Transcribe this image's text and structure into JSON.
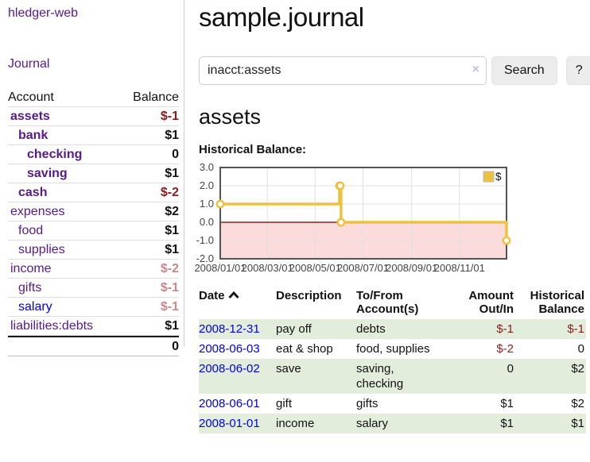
{
  "brand": "hledger-web",
  "nav": {
    "journal": "Journal"
  },
  "sidebar": {
    "header": {
      "account": "Account",
      "balance": "Balance"
    },
    "accounts": [
      {
        "name": "assets",
        "level": 1,
        "bold": true,
        "balance": "$-1"
      },
      {
        "name": "bank",
        "level": 2,
        "bold": true,
        "balance": "$1"
      },
      {
        "name": "checking",
        "level": 3,
        "bold": true,
        "balance": "0"
      },
      {
        "name": "saving",
        "level": 3,
        "bold": true,
        "balance": "$1"
      },
      {
        "name": "cash",
        "level": 2,
        "bold": true,
        "balance": "$-2"
      },
      {
        "name": "expenses",
        "level": 1,
        "bold": false,
        "balance": "$2"
      },
      {
        "name": "food",
        "level": 2,
        "bold": false,
        "balance": "$1"
      },
      {
        "name": "supplies",
        "level": 2,
        "bold": false,
        "balance": "$1"
      },
      {
        "name": "income",
        "level": 1,
        "bold": false,
        "balance": "$-2",
        "faded": true
      },
      {
        "name": "gifts",
        "level": 2,
        "bold": false,
        "balance": "$-1",
        "faded": true
      },
      {
        "name": "salary",
        "level": 2,
        "bold": false,
        "balance": "$-1",
        "faded": true,
        "blue": true
      },
      {
        "name": "liabilities:debts",
        "level": 1,
        "bold": false,
        "balance": "$1"
      }
    ],
    "total": "0"
  },
  "main": {
    "title": "sample.journal",
    "search": {
      "value": "inacct:assets",
      "clear_icon": "×",
      "search_button": "Search",
      "help_button": "?"
    },
    "account_heading": "assets",
    "chart_title": "Historical Balance:"
  },
  "chart_data": {
    "type": "line",
    "step": true,
    "title": "Historical Balance",
    "x": [
      "2008-01-01",
      "2008-06-01",
      "2008-06-02",
      "2008-06-03",
      "2008-12-31"
    ],
    "series": [
      {
        "name": "$",
        "color": "#EDC240",
        "values": [
          1,
          2,
          2,
          0,
          -1
        ]
      }
    ],
    "x_tick_labels": [
      "2008/01/01",
      "2008/03/01",
      "2008/05/01",
      "2008/07/01",
      "2008/09/01",
      "2008/11/01"
    ],
    "y_ticks": [
      3.0,
      2.0,
      1.0,
      0.0,
      -1.0,
      -2.0
    ],
    "ylim": [
      -2,
      3
    ],
    "xlim": [
      "2008-01-01",
      "2008-12-31"
    ],
    "legend": {
      "position": "top-right",
      "label": "$"
    },
    "grid": true,
    "negative_region_color": "#fbdbdb",
    "zero_line_color": "#8b2222",
    "plot_border_color": "#545454"
  },
  "register_table": {
    "headers": {
      "date": "Date",
      "description": "Description",
      "tofrom_line1": "To/From",
      "tofrom_line2": "Account(s)",
      "amount_line1": "Amount",
      "amount_line2": "Out/In",
      "balance_line1": "Historical",
      "balance_line2": "Balance"
    },
    "rows": [
      {
        "date": "2008-12-31",
        "description": "pay off",
        "accounts": [
          "debts"
        ],
        "amount": "$-1",
        "balance": "$-1"
      },
      {
        "date": "2008-06-03",
        "description": "eat & shop",
        "accounts": [
          "food, supplies"
        ],
        "amount": "$-2",
        "balance": "0"
      },
      {
        "date": "2008-06-02",
        "description": "save",
        "accounts": [
          "saving,",
          "checking"
        ],
        "amount": "0",
        "balance": "$2"
      },
      {
        "date": "2008-06-01",
        "description": "gift",
        "accounts": [
          "gifts"
        ],
        "amount": "$1",
        "balance": "$2"
      },
      {
        "date": "2008-01-01",
        "description": "income",
        "accounts": [
          "salary"
        ],
        "amount": "$1",
        "balance": "$1"
      }
    ]
  }
}
